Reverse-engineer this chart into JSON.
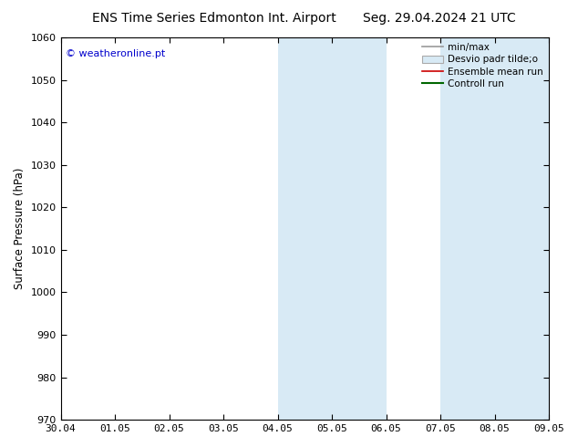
{
  "title_left": "ENS Time Series Edmonton Int. Airport",
  "title_right": "Seg. 29.04.2024 21 UTC",
  "ylabel": "Surface Pressure (hPa)",
  "ylim": [
    970,
    1060
  ],
  "yticks": [
    970,
    980,
    990,
    1000,
    1010,
    1020,
    1030,
    1040,
    1050,
    1060
  ],
  "xtick_labels": [
    "30.04",
    "01.05",
    "02.05",
    "03.05",
    "04.05",
    "05.05",
    "06.05",
    "07.05",
    "08.05",
    "09.05"
  ],
  "shaded_bands": [
    {
      "xstart": 4.0,
      "xend": 5.0
    },
    {
      "xstart": 5.0,
      "xend": 6.0
    },
    {
      "xstart": 7.0,
      "xend": 8.0
    },
    {
      "xstart": 8.0,
      "xend": 9.0
    }
  ],
  "watermark": "© weatheronline.pt",
  "watermark_color": "#0000cc",
  "background_color": "#ffffff",
  "plot_bg_color": "#ffffff",
  "shaded_color": "#d8eaf5",
  "title_fontsize": 10,
  "label_fontsize": 8.5,
  "tick_fontsize": 8,
  "legend_fontsize": 7.5
}
